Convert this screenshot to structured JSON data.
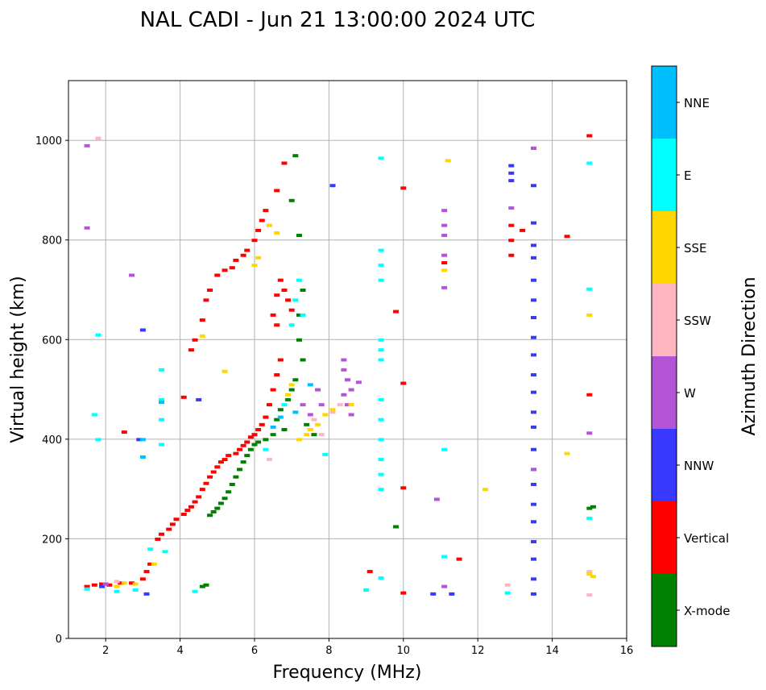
{
  "chart_data": {
    "type": "scatter",
    "title": "NAL CADI - Jun 21 13:00:00 2024 UTC",
    "xlabel": "Frequency (MHz)",
    "ylabel": "Virtual height (km)",
    "xlim": [
      1,
      16
    ],
    "ylim": [
      0,
      1120
    ],
    "xticks": [
      2,
      4,
      6,
      8,
      10,
      12,
      14,
      16
    ],
    "yticks": [
      0,
      200,
      400,
      600,
      800,
      1000
    ],
    "grid": true,
    "colorbar": {
      "title": "Azimuth Direction",
      "categories": [
        "X-mode",
        "Vertical",
        "NNW",
        "W",
        "SSW",
        "SSE",
        "E",
        "NNE"
      ],
      "colors": [
        "#008000",
        "#ff0000",
        "#3838ff",
        "#b455d6",
        "#ffb6c1",
        "#ffd700",
        "#00ffff",
        "#00bfff"
      ]
    },
    "series": [
      {
        "name": "X-mode",
        "points": [
          [
            4.6,
            105
          ],
          [
            4.7,
            108
          ],
          [
            4.8,
            248
          ],
          [
            4.9,
            255
          ],
          [
            5.0,
            262
          ],
          [
            5.1,
            272
          ],
          [
            5.2,
            282
          ],
          [
            5.3,
            295
          ],
          [
            5.4,
            310
          ],
          [
            5.5,
            325
          ],
          [
            5.6,
            340
          ],
          [
            5.7,
            355
          ],
          [
            5.8,
            368
          ],
          [
            5.9,
            380
          ],
          [
            6.0,
            390
          ],
          [
            6.1,
            395
          ],
          [
            6.3,
            400
          ],
          [
            6.5,
            410
          ],
          [
            6.6,
            440
          ],
          [
            6.7,
            460
          ],
          [
            6.8,
            420
          ],
          [
            6.9,
            480
          ],
          [
            7.0,
            500
          ],
          [
            7.1,
            520
          ],
          [
            7.2,
            600
          ],
          [
            7.2,
            650
          ],
          [
            7.3,
            700
          ],
          [
            7.3,
            560
          ],
          [
            7.0,
            880
          ],
          [
            7.1,
            970
          ],
          [
            7.2,
            810
          ],
          [
            7.4,
            430
          ],
          [
            7.6,
            410
          ],
          [
            9.8,
            225
          ],
          [
            15.0,
            262
          ],
          [
            15.1,
            265
          ]
        ]
      },
      {
        "name": "Vertical",
        "points": [
          [
            1.5,
            105
          ],
          [
            1.7,
            108
          ],
          [
            1.9,
            110
          ],
          [
            2.1,
            108
          ],
          [
            2.4,
            112
          ],
          [
            2.7,
            112
          ],
          [
            3.0,
            120
          ],
          [
            3.1,
            135
          ],
          [
            3.2,
            150
          ],
          [
            3.4,
            200
          ],
          [
            3.5,
            210
          ],
          [
            3.7,
            220
          ],
          [
            3.8,
            230
          ],
          [
            3.9,
            240
          ],
          [
            4.1,
            250
          ],
          [
            4.2,
            258
          ],
          [
            4.3,
            265
          ],
          [
            4.4,
            275
          ],
          [
            4.5,
            285
          ],
          [
            4.6,
            300
          ],
          [
            4.7,
            312
          ],
          [
            4.8,
            325
          ],
          [
            4.9,
            335
          ],
          [
            5.0,
            345
          ],
          [
            5.1,
            355
          ],
          [
            5.2,
            360
          ],
          [
            5.3,
            368
          ],
          [
            5.5,
            372
          ],
          [
            5.6,
            380
          ],
          [
            5.7,
            388
          ],
          [
            5.8,
            395
          ],
          [
            5.9,
            405
          ],
          [
            6.0,
            410
          ],
          [
            6.1,
            420
          ],
          [
            6.2,
            430
          ],
          [
            6.3,
            445
          ],
          [
            6.4,
            470
          ],
          [
            6.5,
            500
          ],
          [
            6.6,
            530
          ],
          [
            6.7,
            560
          ],
          [
            6.6,
            690
          ],
          [
            6.7,
            720
          ],
          [
            6.8,
            700
          ],
          [
            6.9,
            680
          ],
          [
            7.0,
            660
          ],
          [
            6.5,
            650
          ],
          [
            6.6,
            630
          ],
          [
            4.6,
            640
          ],
          [
            4.3,
            580
          ],
          [
            4.4,
            600
          ],
          [
            4.7,
            680
          ],
          [
            4.8,
            700
          ],
          [
            5.0,
            730
          ],
          [
            5.2,
            740
          ],
          [
            5.4,
            745
          ],
          [
            5.5,
            760
          ],
          [
            5.7,
            770
          ],
          [
            5.8,
            780
          ],
          [
            6.0,
            800
          ],
          [
            6.1,
            820
          ],
          [
            6.2,
            840
          ],
          [
            6.3,
            860
          ],
          [
            6.6,
            900
          ],
          [
            6.8,
            955
          ],
          [
            4.1,
            485
          ],
          [
            2.5,
            415
          ],
          [
            10.0,
            905
          ],
          [
            10.0,
            513
          ],
          [
            10.0,
            303
          ],
          [
            10.0,
            92
          ],
          [
            9.8,
            657
          ],
          [
            9.1,
            135
          ],
          [
            11.1,
            755
          ],
          [
            11.5,
            160
          ],
          [
            12.9,
            770
          ],
          [
            12.9,
            800
          ],
          [
            12.9,
            830
          ],
          [
            13.2,
            820
          ],
          [
            14.4,
            808
          ],
          [
            15.0,
            1010
          ],
          [
            15.0,
            490
          ]
        ]
      },
      {
        "name": "NNW",
        "points": [
          [
            1.9,
            105
          ],
          [
            3.1,
            90
          ],
          [
            13.5,
            90
          ],
          [
            12.9,
            920
          ],
          [
            12.9,
            935
          ],
          [
            12.9,
            950
          ],
          [
            13.5,
            985
          ],
          [
            13.5,
            910
          ],
          [
            13.5,
            835
          ],
          [
            13.5,
            790
          ],
          [
            13.5,
            765
          ],
          [
            13.5,
            720
          ],
          [
            13.5,
            680
          ],
          [
            13.5,
            645
          ],
          [
            13.5,
            605
          ],
          [
            13.5,
            570
          ],
          [
            13.5,
            530
          ],
          [
            13.5,
            495
          ],
          [
            13.5,
            455
          ],
          [
            13.5,
            425
          ],
          [
            13.5,
            380
          ],
          [
            13.5,
            340
          ],
          [
            13.5,
            310
          ],
          [
            13.5,
            270
          ],
          [
            13.5,
            235
          ],
          [
            13.5,
            195
          ],
          [
            13.5,
            160
          ],
          [
            13.5,
            120
          ],
          [
            10.8,
            90
          ],
          [
            11.3,
            90
          ],
          [
            8.1,
            910
          ],
          [
            4.5,
            480
          ],
          [
            2.9,
            400
          ],
          [
            3.0,
            620
          ]
        ]
      },
      {
        "name": "W",
        "points": [
          [
            1.5,
            990
          ],
          [
            1.5,
            825
          ],
          [
            2.0,
            110
          ],
          [
            2.7,
            730
          ],
          [
            7.3,
            470
          ],
          [
            7.5,
            450
          ],
          [
            7.7,
            500
          ],
          [
            7.8,
            470
          ],
          [
            8.4,
            560
          ],
          [
            8.4,
            540
          ],
          [
            8.5,
            520
          ],
          [
            8.6,
            500
          ],
          [
            8.4,
            490
          ],
          [
            8.5,
            470
          ],
          [
            8.6,
            450
          ],
          [
            8.8,
            515
          ],
          [
            11.1,
            105
          ],
          [
            11.1,
            860
          ],
          [
            11.1,
            830
          ],
          [
            11.1,
            810
          ],
          [
            11.1,
            770
          ],
          [
            11.1,
            705
          ],
          [
            10.9,
            280
          ],
          [
            12.9,
            865
          ],
          [
            13.5,
            985
          ],
          [
            13.5,
            340
          ],
          [
            15.0,
            413
          ]
        ]
      },
      {
        "name": "SSW",
        "points": [
          [
            1.8,
            1005
          ],
          [
            2.3,
            115
          ],
          [
            6.4,
            360
          ],
          [
            7.5,
            420
          ],
          [
            7.6,
            440
          ],
          [
            7.8,
            410
          ],
          [
            8.1,
            455
          ],
          [
            8.3,
            470
          ],
          [
            12.8,
            108
          ],
          [
            15.0,
            88
          ],
          [
            15.0,
            135
          ]
        ]
      },
      {
        "name": "SSE",
        "points": [
          [
            2.3,
            105
          ],
          [
            2.5,
            112
          ],
          [
            2.8,
            110
          ],
          [
            3.3,
            150
          ],
          [
            4.6,
            608
          ],
          [
            5.2,
            537
          ],
          [
            6.0,
            750
          ],
          [
            6.1,
            765
          ],
          [
            6.4,
            830
          ],
          [
            6.6,
            815
          ],
          [
            6.9,
            490
          ],
          [
            7.0,
            510
          ],
          [
            7.2,
            400
          ],
          [
            7.4,
            410
          ],
          [
            7.5,
            420
          ],
          [
            7.7,
            430
          ],
          [
            7.9,
            450
          ],
          [
            8.1,
            460
          ],
          [
            8.6,
            470
          ],
          [
            11.2,
            960
          ],
          [
            11.1,
            740
          ],
          [
            12.2,
            300
          ],
          [
            14.4,
            372
          ],
          [
            15.0,
            650
          ],
          [
            15.0,
            130
          ],
          [
            15.1,
            125
          ]
        ]
      },
      {
        "name": "E",
        "points": [
          [
            1.5,
            100
          ],
          [
            1.7,
            450
          ],
          [
            1.8,
            400
          ],
          [
            1.8,
            610
          ],
          [
            2.3,
            95
          ],
          [
            2.8,
            98
          ],
          [
            3.2,
            180
          ],
          [
            3.5,
            540
          ],
          [
            3.5,
            480
          ],
          [
            3.5,
            440
          ],
          [
            3.5,
            390
          ],
          [
            3.6,
            175
          ],
          [
            4.4,
            95
          ],
          [
            6.3,
            380
          ],
          [
            6.8,
            470
          ],
          [
            7.0,
            630
          ],
          [
            7.2,
            720
          ],
          [
            7.1,
            680
          ],
          [
            7.3,
            650
          ],
          [
            7.9,
            370
          ],
          [
            9.0,
            98
          ],
          [
            9.4,
            965
          ],
          [
            9.4,
            780
          ],
          [
            9.4,
            750
          ],
          [
            9.4,
            720
          ],
          [
            9.4,
            600
          ],
          [
            9.4,
            580
          ],
          [
            9.4,
            560
          ],
          [
            9.4,
            480
          ],
          [
            9.4,
            440
          ],
          [
            9.4,
            400
          ],
          [
            9.4,
            360
          ],
          [
            9.4,
            330
          ],
          [
            9.4,
            300
          ],
          [
            9.4,
            122
          ],
          [
            11.1,
            380
          ],
          [
            11.1,
            165
          ],
          [
            12.8,
            92
          ],
          [
            15.0,
            955
          ],
          [
            15.0,
            702
          ],
          [
            15.0,
            242
          ]
        ]
      },
      {
        "name": "NNE",
        "points": [
          [
            3.0,
            400
          ],
          [
            3.0,
            365
          ],
          [
            3.5,
            475
          ],
          [
            6.5,
            425
          ],
          [
            6.7,
            445
          ],
          [
            7.1,
            455
          ],
          [
            7.5,
            510
          ]
        ]
      }
    ]
  }
}
